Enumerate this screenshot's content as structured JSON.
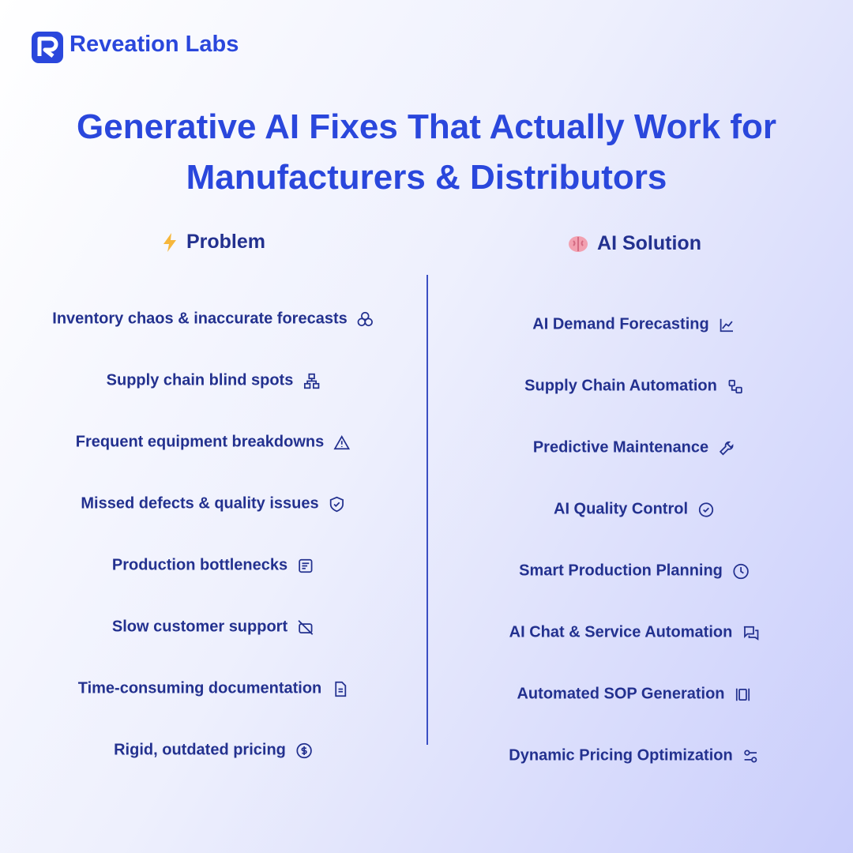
{
  "brand": "Reveation Labs",
  "title_lines": [
    "Generative AI Fixes That Actually Work for",
    "Manufacturers & Distributors"
  ],
  "problem": {
    "heading": "Problem",
    "items": [
      "Inventory chaos & inaccurate forecasts",
      "Supply chain blind spots",
      "Frequent equipment breakdowns",
      "Missed defects & quality issues",
      "Production bottlenecks",
      "Slow customer support",
      "Time-consuming documentation",
      "Rigid, outdated pricing"
    ]
  },
  "solution": {
    "heading": "AI Solution",
    "items": [
      "AI Demand Forecasting",
      "Supply Chain Automation",
      "Predictive Maintenance",
      "AI Quality Control",
      "Smart Production Planning",
      "AI Chat & Service Automation",
      "Automated SOP Generation",
      "Dynamic Pricing Optimization"
    ]
  }
}
